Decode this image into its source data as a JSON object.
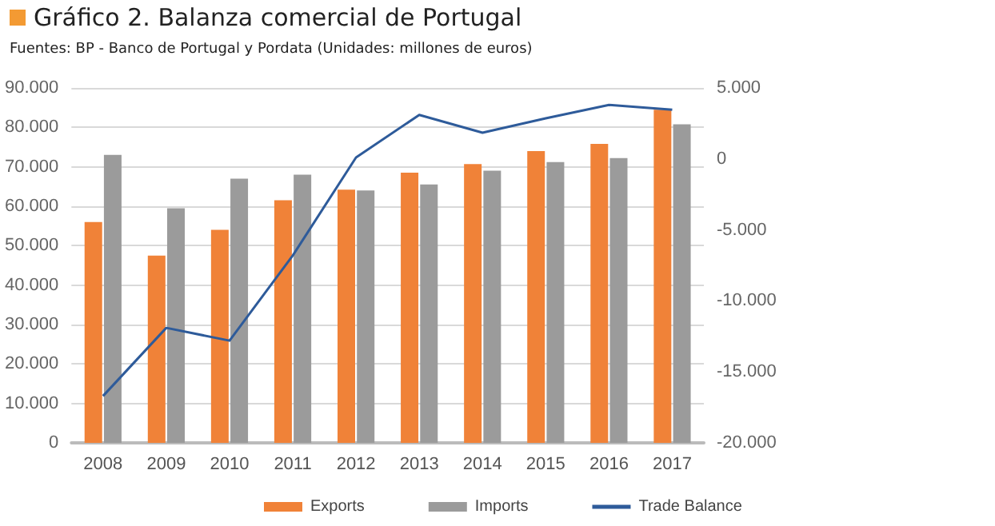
{
  "chart_data": {
    "type": "bar",
    "title": "Gráfico 2. Balanza comercial de Portugal",
    "subtitle": "Fuentes: BP - Banco de Portugal y Pordata (Unidades: millones de euros)",
    "categories": [
      "2008",
      "2009",
      "2010",
      "2011",
      "2012",
      "2013",
      "2014",
      "2015",
      "2016",
      "2017"
    ],
    "series": [
      {
        "name": "Exports",
        "color": "#f08238",
        "values": [
          56000,
          47500,
          54000,
          61500,
          64200,
          68500,
          70700,
          74000,
          75800,
          84500
        ]
      },
      {
        "name": "Imports",
        "color": "#9b9b9b",
        "values": [
          73000,
          59500,
          67000,
          68000,
          64000,
          65500,
          69000,
          71200,
          72200,
          80800
        ]
      },
      {
        "name": "Trade Balance",
        "type": "line",
        "axis": "y2",
        "color": "#2e5b9a",
        "values": [
          -16700,
          -11900,
          -12800,
          -6800,
          100,
          3100,
          1850,
          2860,
          3800,
          3460
        ]
      }
    ],
    "ylim": [
      0,
      90000
    ],
    "yticks": [
      {
        "value": 0,
        "label": "0"
      },
      {
        "value": 10000,
        "label": "10.000"
      },
      {
        "value": 20000,
        "label": "20.000"
      },
      {
        "value": 30000,
        "label": "30.000"
      },
      {
        "value": 40000,
        "label": "40.000"
      },
      {
        "value": 50000,
        "label": "50.000"
      },
      {
        "value": 60000,
        "label": "60.000"
      },
      {
        "value": 70000,
        "label": "70.000"
      },
      {
        "value": 80000,
        "label": "80.000"
      },
      {
        "value": 90000,
        "label": "90.000"
      }
    ],
    "y2lim": [
      -20000,
      5000
    ],
    "y2ticks": [
      {
        "value": -20000,
        "label": "-20.000"
      },
      {
        "value": -15000,
        "label": "-15.000"
      },
      {
        "value": -10000,
        "label": "-10.000"
      },
      {
        "value": -5000,
        "label": "-5.000"
      },
      {
        "value": 0,
        "label": "0"
      },
      {
        "value": 5000,
        "label": "5.000"
      }
    ],
    "grid": "y",
    "legend": "bottom",
    "marker": "none",
    "line_style": "solid"
  }
}
